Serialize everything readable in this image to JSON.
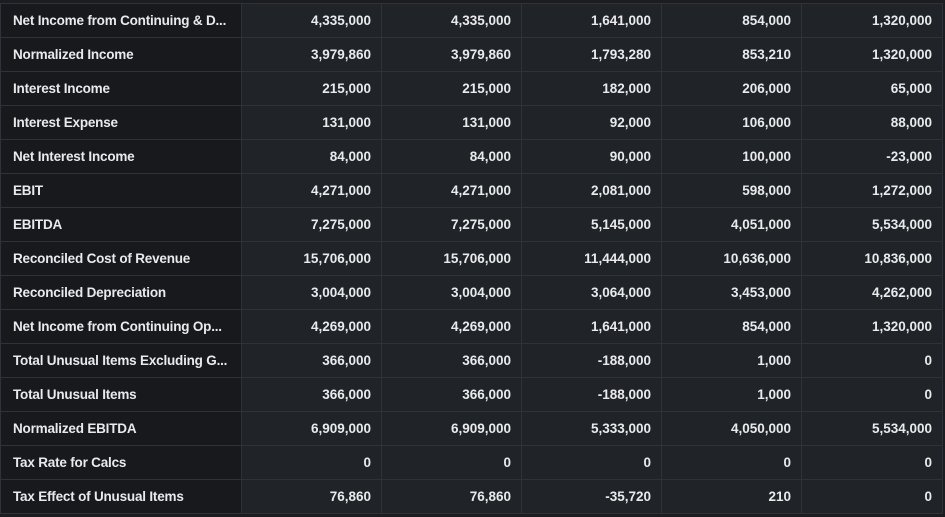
{
  "table": {
    "rows": [
      {
        "label": "Net Income from Continuing & D...",
        "values": [
          "4,335,000",
          "4,335,000",
          "1,641,000",
          "854,000",
          "1,320,000"
        ]
      },
      {
        "label": "Normalized Income",
        "values": [
          "3,979,860",
          "3,979,860",
          "1,793,280",
          "853,210",
          "1,320,000"
        ]
      },
      {
        "label": "Interest Income",
        "values": [
          "215,000",
          "215,000",
          "182,000",
          "206,000",
          "65,000"
        ]
      },
      {
        "label": "Interest Expense",
        "values": [
          "131,000",
          "131,000",
          "92,000",
          "106,000",
          "88,000"
        ]
      },
      {
        "label": "Net Interest Income",
        "values": [
          "84,000",
          "84,000",
          "90,000",
          "100,000",
          "-23,000"
        ]
      },
      {
        "label": "EBIT",
        "values": [
          "4,271,000",
          "4,271,000",
          "2,081,000",
          "598,000",
          "1,272,000"
        ]
      },
      {
        "label": "EBITDA",
        "values": [
          "7,275,000",
          "7,275,000",
          "5,145,000",
          "4,051,000",
          "5,534,000"
        ]
      },
      {
        "label": "Reconciled Cost of Revenue",
        "values": [
          "15,706,000",
          "15,706,000",
          "11,444,000",
          "10,636,000",
          "10,836,000"
        ]
      },
      {
        "label": "Reconciled Depreciation",
        "values": [
          "3,004,000",
          "3,004,000",
          "3,064,000",
          "3,453,000",
          "4,262,000"
        ]
      },
      {
        "label": "Net Income from Continuing Op...",
        "values": [
          "4,269,000",
          "4,269,000",
          "1,641,000",
          "854,000",
          "1,320,000"
        ]
      },
      {
        "label": "Total Unusual Items Excluding G...",
        "values": [
          "366,000",
          "366,000",
          "-188,000",
          "1,000",
          "0"
        ]
      },
      {
        "label": "Total Unusual Items",
        "values": [
          "366,000",
          "366,000",
          "-188,000",
          "1,000",
          "0"
        ]
      },
      {
        "label": "Normalized EBITDA",
        "values": [
          "6,909,000",
          "6,909,000",
          "5,333,000",
          "4,050,000",
          "5,534,000"
        ]
      },
      {
        "label": "Tax Rate for Calcs",
        "values": [
          "0",
          "0",
          "0",
          "0",
          "0"
        ]
      },
      {
        "label": "Tax Effect of Unusual Items",
        "values": [
          "76,860",
          "76,860",
          "-35,720",
          "210",
          "0"
        ]
      }
    ]
  }
}
